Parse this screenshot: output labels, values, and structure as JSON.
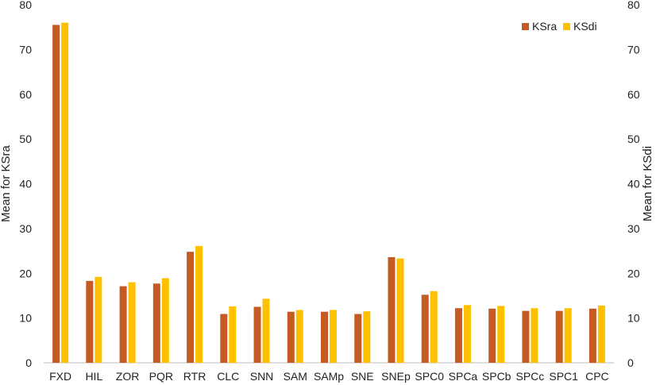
{
  "chart_data": {
    "type": "bar",
    "title": "",
    "xlabel": "",
    "ylabel_left": "Mean for KSra",
    "ylabel_right": "Mean for KSdi",
    "ylim": [
      0,
      80
    ],
    "yticks": [
      0,
      10,
      20,
      30,
      40,
      50,
      60,
      70,
      80
    ],
    "grid": false,
    "legend_position": "top-right",
    "categories": [
      "FXD",
      "HIL",
      "ZOR",
      "PQR",
      "RTR",
      "CLC",
      "SNN",
      "SAM",
      "SAMp",
      "SNE",
      "SNEp",
      "SPC0",
      "SPCa",
      "SPCb",
      "SPCc",
      "SPC1",
      "CPC"
    ],
    "series": [
      {
        "name": "KSra",
        "color": "#C55A22",
        "axis": "left",
        "values": [
          75.5,
          18.3,
          17.1,
          17.7,
          24.8,
          10.9,
          12.5,
          11.4,
          11.4,
          10.9,
          23.6,
          15.2,
          12.2,
          12.1,
          11.6,
          11.6,
          12.1
        ]
      },
      {
        "name": "KSdi",
        "color": "#FFC000",
        "axis": "right",
        "values": [
          76.0,
          19.2,
          18.0,
          18.9,
          26.1,
          12.6,
          14.3,
          11.8,
          11.8,
          11.5,
          23.3,
          16.0,
          12.9,
          12.7,
          12.2,
          12.2,
          12.8
        ]
      }
    ]
  }
}
